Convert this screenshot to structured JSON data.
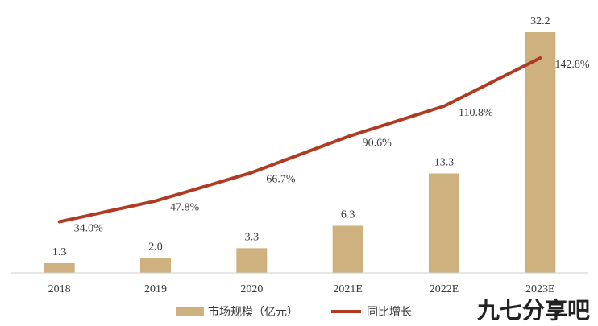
{
  "chart_data": {
    "type": "bar",
    "categories": [
      "2018",
      "2019",
      "2020",
      "2021E",
      "2022E",
      "2023E"
    ],
    "series": [
      {
        "name": "市场规模（亿元）",
        "type": "bar",
        "values": [
          1.3,
          2.0,
          3.3,
          6.3,
          13.3,
          32.2
        ],
        "labels": [
          "1.3",
          "2.0",
          "3.3",
          "6.3",
          "13.3",
          "32.2"
        ],
        "color": "#cfb07f"
      },
      {
        "name": "同比增长",
        "type": "line",
        "values": [
          34.0,
          47.8,
          66.7,
          90.6,
          110.8,
          142.8
        ],
        "labels": [
          "34.0%",
          "47.8%",
          "66.7%",
          "90.6%",
          "110.8%",
          "142.8%"
        ],
        "color": "#b13a22"
      }
    ],
    "title": "",
    "xlabel": "",
    "ylabel": "",
    "ylim": [
      0,
      32.2
    ],
    "y2lim": [
      0,
      160
    ],
    "grid": false,
    "legend_position": "bottom"
  },
  "watermark": "九七分享吧"
}
